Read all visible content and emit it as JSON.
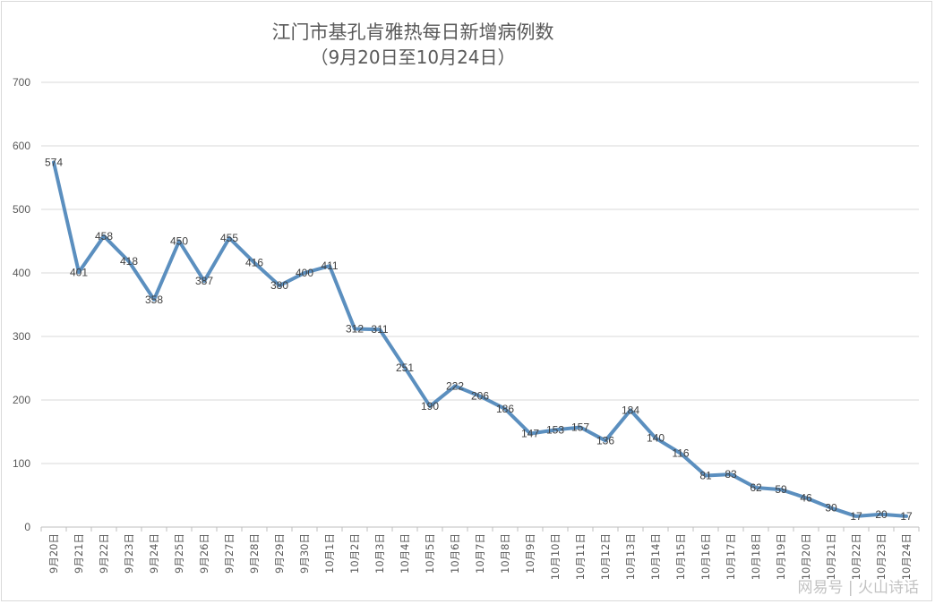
{
  "chart_data": {
    "type": "line",
    "title": "江门市基孔肯雅热每日新增病例数",
    "subtitle": "（9月20日至10月24日）",
    "xlabel": "",
    "ylabel": "",
    "ylim": [
      0,
      700
    ],
    "yticks": [
      0,
      100,
      200,
      300,
      400,
      500,
      600,
      700
    ],
    "grid": true,
    "legend": null,
    "data_labels": true,
    "line_color": "#5b8fbf",
    "categories": [
      "9月20日",
      "9月21日",
      "9月22日",
      "9月23日",
      "9月24日",
      "9月25日",
      "9月26日",
      "9月27日",
      "9月28日",
      "9月29日",
      "9月30日",
      "10月1日",
      "10月2日",
      "10月3日",
      "10月4日",
      "10月5日",
      "10月6日",
      "10月7日",
      "10月8日",
      "10月9日",
      "10月10日",
      "10月11日",
      "10月12日",
      "10月13日",
      "10月14日",
      "10月15日",
      "10月16日",
      "10月17日",
      "10月18日",
      "10月19日",
      "10月20日",
      "10月21日",
      "10月22日",
      "10月23日",
      "10月24日"
    ],
    "values": [
      574,
      401,
      458,
      418,
      358,
      450,
      387,
      455,
      416,
      380,
      400,
      411,
      312,
      311,
      251,
      190,
      222,
      206,
      186,
      147,
      153,
      157,
      136,
      184,
      140,
      116,
      81,
      83,
      62,
      59,
      46,
      30,
      17,
      20,
      17
    ]
  },
  "watermark": "网易号 | 火山诗话"
}
